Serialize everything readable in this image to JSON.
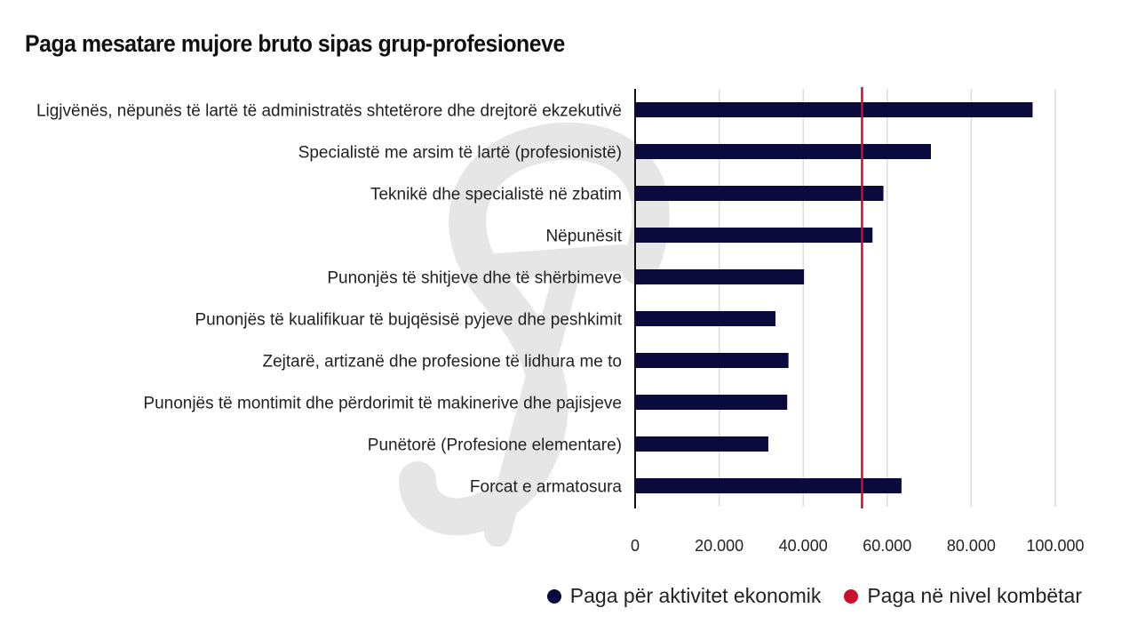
{
  "chart_data": {
    "type": "bar",
    "orientation": "horizontal",
    "title": "Paga mesatare mujore bruto sipas grup-profesioneve",
    "categories": [
      "Ligjvënës, nëpunës të lartë të administratës shtetërore dhe drejtorë ekzekutivë",
      "Specialistë me arsim të lartë (profesionistë)",
      "Teknikë dhe specialistë në zbatim",
      "Nëpunësit",
      "Punonjës të shitjeve dhe të shërbimeve",
      "Punonjës të kualifikuar të bujqësisë pyjeve dhe peshkimit",
      "Zejtarë, artizanë dhe profesione të lidhura me to",
      "Punonjës të montimit dhe përdorimit të makinerive dhe pajisjeve",
      "Punëtorë (Profesione elementare)",
      "Forcat e armatosura"
    ],
    "series": [
      {
        "name": "Paga për aktivitet ekonomik",
        "color": "#0b0a3d",
        "values": [
          94600,
          70400,
          59100,
          56500,
          40200,
          33400,
          36500,
          36200,
          31700,
          63400
        ]
      }
    ],
    "reference_line": {
      "name": "Paga në nivel kombëtar",
      "value": 54000,
      "color": "#c8102e"
    },
    "xlim": [
      0,
      100000
    ],
    "xticks": [
      0,
      20000,
      40000,
      60000,
      80000,
      100000
    ],
    "xtick_labels": [
      "0",
      "20.000",
      "40.000",
      "60.000",
      "80.000",
      "100.000"
    ],
    "grid": true,
    "legend_position": "bottom-right"
  },
  "watermark": "S"
}
